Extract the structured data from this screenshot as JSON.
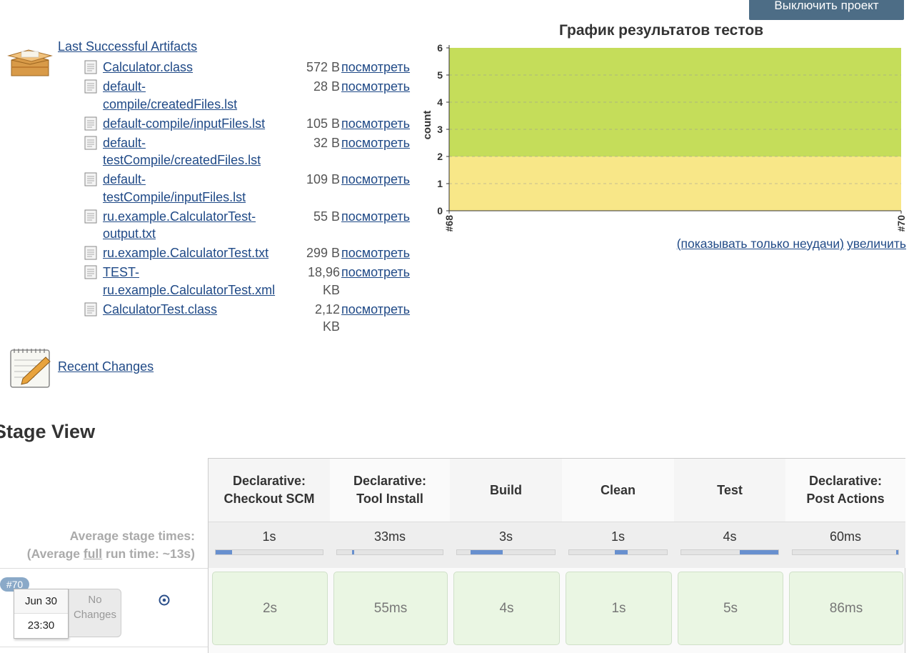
{
  "header": {
    "disable_label": "Выключить проект"
  },
  "artifacts": {
    "title": "Last Successful Artifacts",
    "view_label": "посмотреть",
    "files": [
      {
        "name_lines": [
          "Calculator.class"
        ],
        "size_lines": [
          "572 B"
        ]
      },
      {
        "name_lines": [
          "default-",
          "compile/createdFiles.lst"
        ],
        "size_lines": [
          "28 B"
        ]
      },
      {
        "name_lines": [
          "default-compile/inputFiles.lst"
        ],
        "size_lines": [
          "105 B"
        ]
      },
      {
        "name_lines": [
          "default-",
          "testCompile/createdFiles.lst"
        ],
        "size_lines": [
          "32 B"
        ]
      },
      {
        "name_lines": [
          "default-",
          "testCompile/inputFiles.lst"
        ],
        "size_lines": [
          "109 B"
        ]
      },
      {
        "name_lines": [
          "ru.example.CalculatorTest-",
          "output.txt"
        ],
        "size_lines": [
          "55 B"
        ]
      },
      {
        "name_lines": [
          "ru.example.CalculatorTest.txt"
        ],
        "size_lines": [
          "299 B"
        ]
      },
      {
        "name_lines": [
          "TEST-",
          "ru.example.CalculatorTest.xml"
        ],
        "size_lines": [
          "18,96",
          "KB"
        ]
      },
      {
        "name_lines": [
          "CalculatorTest.class"
        ],
        "size_lines": [
          "2,12",
          "KB"
        ]
      }
    ]
  },
  "recent_changes": {
    "label": "Recent Changes"
  },
  "chart_data": {
    "type": "area",
    "title": "График результатов тестов",
    "xlabel": "",
    "ylabel": "count",
    "x": [
      "#68",
      "#70"
    ],
    "ylim": [
      0,
      6
    ],
    "yticks": [
      0,
      1,
      2,
      3,
      4,
      5,
      6
    ],
    "series": [
      {
        "values": [
          2,
          2
        ],
        "color": "#f8e788"
      },
      {
        "values": [
          4,
          4
        ],
        "color": "#c5dd5a"
      }
    ]
  },
  "chart_links": {
    "failures_only": "(показывать только неудачи)",
    "enlarge": "увеличить"
  },
  "stage_view": {
    "title": "Stage View",
    "avg_label_1": "Average stage times:",
    "avg_label_2_pre": "(Average ",
    "avg_label_2_full": "full",
    "avg_label_2_post": " run time: ~13s)",
    "stages": [
      {
        "name_lines": [
          "Declarative:",
          "Checkout SCM"
        ],
        "avg": "1s",
        "bar_start": 0.0,
        "bar_end": 0.15,
        "last": "2s"
      },
      {
        "name_lines": [
          "Declarative:",
          "Tool Install"
        ],
        "avg": "33ms",
        "bar_start": 0.14,
        "bar_end": 0.16,
        "last": "55ms"
      },
      {
        "name_lines": [
          "Build"
        ],
        "avg": "3s",
        "bar_start": 0.14,
        "bar_end": 0.47,
        "last": "4s"
      },
      {
        "name_lines": [
          "Clean"
        ],
        "avg": "1s",
        "bar_start": 0.47,
        "bar_end": 0.6,
        "last": "1s"
      },
      {
        "name_lines": [
          "Test"
        ],
        "avg": "4s",
        "bar_start": 0.6,
        "bar_end": 1.0,
        "last": "5s"
      },
      {
        "name_lines": [
          "Declarative:",
          "Post Actions"
        ],
        "avg": "60ms",
        "bar_start": 0.98,
        "bar_end": 1.0,
        "last": "86ms"
      }
    ],
    "build": {
      "badge": "#70",
      "date": "Jun 30",
      "time": "23:30",
      "changes": "No Changes"
    }
  }
}
